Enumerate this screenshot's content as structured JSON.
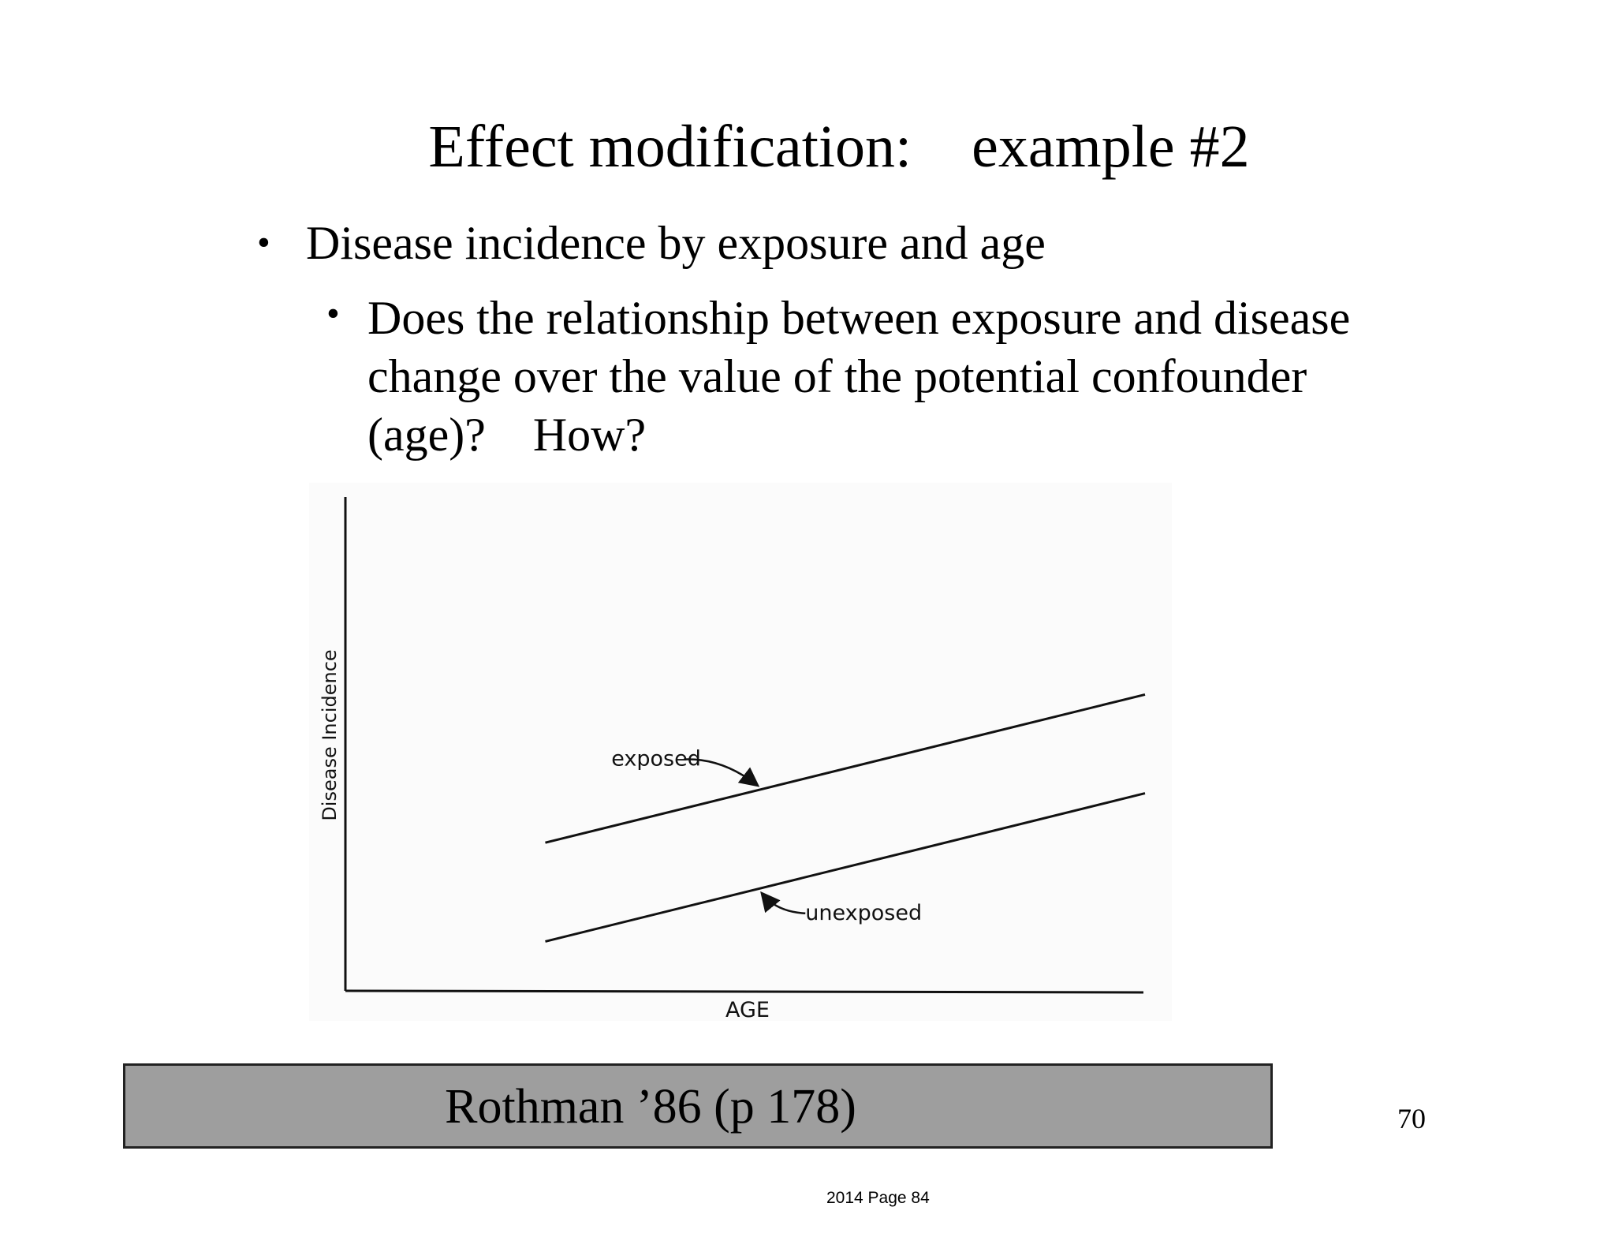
{
  "slide": {
    "title": "Effect modification:    example #2",
    "bullet1": "Disease incidence by exposure and age",
    "bullet2": "Does the relationship between exposure and disease change over the value of the potential confounder (age)?    How?",
    "bullet_glyph": "•",
    "citation": "Rothman ’86 (p 178)",
    "slide_number": "70",
    "page_footer": "2014 Page 84"
  },
  "chart_data": {
    "type": "line",
    "xlabel": "AGE",
    "ylabel": "Disease Incidence",
    "xlim": [
      0,
      100
    ],
    "ylim": [
      0,
      100
    ],
    "axis_ticks": false,
    "grid": false,
    "series": [
      {
        "name": "exposed",
        "x": [
          25,
          100
        ],
        "y": [
          30,
          60
        ]
      },
      {
        "name": "unexposed",
        "x": [
          25,
          100
        ],
        "y": [
          10,
          40
        ]
      }
    ]
  }
}
